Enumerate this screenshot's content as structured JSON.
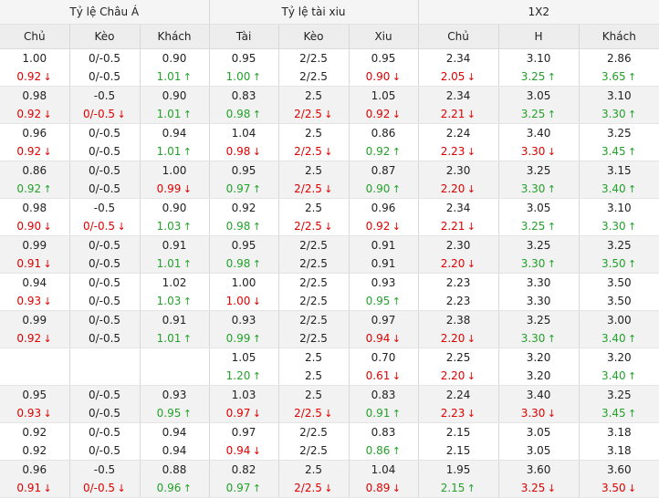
{
  "colors": {
    "down": "#e00000",
    "up": "#23a12a"
  },
  "groups": [
    "Tỷ lệ Châu Á",
    "Tỷ lệ tài xiu",
    "1X2"
  ],
  "headers": [
    "Chủ",
    "Kèo",
    "Khách",
    "Tài",
    "Kèo",
    "Xiu",
    "Chủ",
    "H",
    "Khách"
  ],
  "rows": [
    [
      [
        "1.00",
        "0.92",
        "d"
      ],
      [
        "0/-0.5",
        "0/-0.5",
        ""
      ],
      [
        "0.90",
        "1.01",
        "u"
      ],
      [
        "0.95",
        "1.00",
        "u"
      ],
      [
        "2/2.5",
        "2/2.5",
        ""
      ],
      [
        "0.95",
        "0.90",
        "d"
      ],
      [
        "2.34",
        "2.05",
        "d"
      ],
      [
        "3.10",
        "3.25",
        "u"
      ],
      [
        "2.86",
        "3.65",
        "u"
      ]
    ],
    [
      [
        "0.98",
        "0.92",
        "d"
      ],
      [
        "-0.5",
        "0/-0.5",
        "d"
      ],
      [
        "0.90",
        "1.01",
        "u"
      ],
      [
        "0.83",
        "0.98",
        "u"
      ],
      [
        "2.5",
        "2/2.5",
        "d"
      ],
      [
        "1.05",
        "0.92",
        "d"
      ],
      [
        "2.34",
        "2.21",
        "d"
      ],
      [
        "3.05",
        "3.25",
        "u"
      ],
      [
        "3.10",
        "3.30",
        "u"
      ]
    ],
    [
      [
        "0.96",
        "0.92",
        "d"
      ],
      [
        "0/-0.5",
        "0/-0.5",
        ""
      ],
      [
        "0.94",
        "1.01",
        "u"
      ],
      [
        "1.04",
        "0.98",
        "d"
      ],
      [
        "2.5",
        "2/2.5",
        "d"
      ],
      [
        "0.86",
        "0.92",
        "u"
      ],
      [
        "2.24",
        "2.23",
        "d"
      ],
      [
        "3.40",
        "3.30",
        "d"
      ],
      [
        "3.25",
        "3.45",
        "u"
      ]
    ],
    [
      [
        "0.86",
        "0.92",
        "u"
      ],
      [
        "0/-0.5",
        "0/-0.5",
        ""
      ],
      [
        "1.00",
        "0.99",
        "d"
      ],
      [
        "0.95",
        "0.97",
        "u"
      ],
      [
        "2.5",
        "2/2.5",
        "d"
      ],
      [
        "0.87",
        "0.90",
        "u"
      ],
      [
        "2.30",
        "2.20",
        "d"
      ],
      [
        "3.25",
        "3.30",
        "u"
      ],
      [
        "3.15",
        "3.40",
        "u"
      ]
    ],
    [
      [
        "0.98",
        "0.90",
        "d"
      ],
      [
        "-0.5",
        "0/-0.5",
        "d"
      ],
      [
        "0.90",
        "1.03",
        "u"
      ],
      [
        "0.92",
        "0.98",
        "u"
      ],
      [
        "2.5",
        "2/2.5",
        "d"
      ],
      [
        "0.96",
        "0.92",
        "d"
      ],
      [
        "2.34",
        "2.21",
        "d"
      ],
      [
        "3.05",
        "3.25",
        "u"
      ],
      [
        "3.10",
        "3.30",
        "u"
      ]
    ],
    [
      [
        "0.99",
        "0.91",
        "d"
      ],
      [
        "0/-0.5",
        "0/-0.5",
        ""
      ],
      [
        "0.91",
        "1.01",
        "u"
      ],
      [
        "0.95",
        "0.98",
        "u"
      ],
      [
        "2/2.5",
        "2/2.5",
        ""
      ],
      [
        "0.91",
        "0.91",
        ""
      ],
      [
        "2.30",
        "2.20",
        "d"
      ],
      [
        "3.25",
        "3.30",
        "u"
      ],
      [
        "3.25",
        "3.50",
        "u"
      ]
    ],
    [
      [
        "0.94",
        "0.93",
        "d"
      ],
      [
        "0/-0.5",
        "0/-0.5",
        ""
      ],
      [
        "1.02",
        "1.03",
        "u"
      ],
      [
        "1.00",
        "1.00",
        "d"
      ],
      [
        "2/2.5",
        "2/2.5",
        ""
      ],
      [
        "0.93",
        "0.95",
        "u"
      ],
      [
        "2.23",
        "2.23",
        ""
      ],
      [
        "3.30",
        "3.30",
        ""
      ],
      [
        "3.50",
        "3.50",
        ""
      ]
    ],
    [
      [
        "0.99",
        "0.92",
        "d"
      ],
      [
        "0/-0.5",
        "0/-0.5",
        ""
      ],
      [
        "0.91",
        "1.01",
        "u"
      ],
      [
        "0.93",
        "0.99",
        "u"
      ],
      [
        "2/2.5",
        "2/2.5",
        ""
      ],
      [
        "0.97",
        "0.94",
        "d"
      ],
      [
        "2.38",
        "2.20",
        "d"
      ],
      [
        "3.25",
        "3.30",
        "u"
      ],
      [
        "3.00",
        "3.40",
        "u"
      ]
    ],
    [
      [
        "",
        "",
        ""
      ],
      [
        "",
        "",
        ""
      ],
      [
        "",
        "",
        ""
      ],
      [
        "1.05",
        "1.20",
        "u"
      ],
      [
        "2.5",
        "2.5",
        ""
      ],
      [
        "0.70",
        "0.61",
        "d"
      ],
      [
        "2.25",
        "2.20",
        "d"
      ],
      [
        "3.20",
        "3.20",
        ""
      ],
      [
        "3.20",
        "3.40",
        "u"
      ]
    ],
    [
      [
        "0.95",
        "0.93",
        "d"
      ],
      [
        "0/-0.5",
        "0/-0.5",
        ""
      ],
      [
        "0.93",
        "0.95",
        "u"
      ],
      [
        "1.03",
        "0.97",
        "d"
      ],
      [
        "2.5",
        "2/2.5",
        "d"
      ],
      [
        "0.83",
        "0.91",
        "u"
      ],
      [
        "2.24",
        "2.23",
        "d"
      ],
      [
        "3.40",
        "3.30",
        "d"
      ],
      [
        "3.25",
        "3.45",
        "u"
      ]
    ],
    [
      [
        "0.92",
        "0.92",
        ""
      ],
      [
        "0/-0.5",
        "0/-0.5",
        ""
      ],
      [
        "0.94",
        "0.94",
        ""
      ],
      [
        "0.97",
        "0.94",
        "d"
      ],
      [
        "2/2.5",
        "2/2.5",
        ""
      ],
      [
        "0.83",
        "0.86",
        "u"
      ],
      [
        "2.15",
        "2.15",
        ""
      ],
      [
        "3.05",
        "3.05",
        ""
      ],
      [
        "3.18",
        "3.18",
        ""
      ]
    ],
    [
      [
        "0.96",
        "0.91",
        "d"
      ],
      [
        "-0.5",
        "0/-0.5",
        "d"
      ],
      [
        "0.88",
        "0.96",
        "u"
      ],
      [
        "0.82",
        "0.97",
        "u"
      ],
      [
        "2.5",
        "2/2.5",
        "d"
      ],
      [
        "1.04",
        "0.89",
        "d"
      ],
      [
        "1.95",
        "2.15",
        "u"
      ],
      [
        "3.60",
        "3.25",
        "d"
      ],
      [
        "3.60",
        "3.50",
        "d"
      ]
    ]
  ]
}
